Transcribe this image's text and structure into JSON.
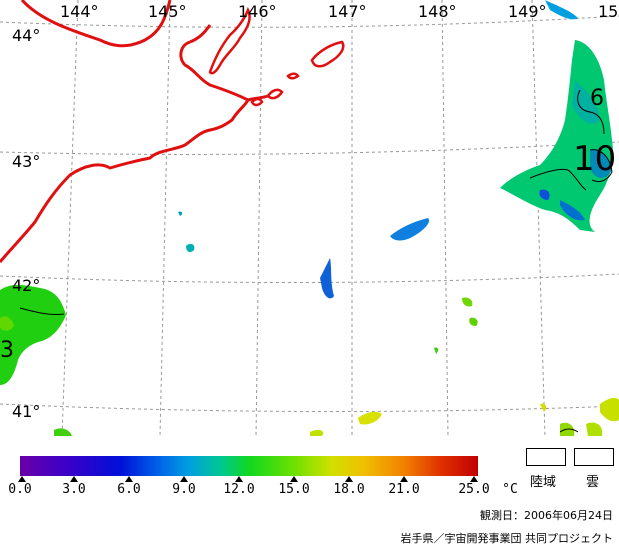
{
  "map": {
    "longitude_labels": [
      "144°",
      "145°",
      "146°",
      "147°",
      "148°",
      "149°",
      "15"
    ],
    "latitude_labels": [
      "44°",
      "43°",
      "42°",
      "41°"
    ],
    "contour_labels": [
      "10",
      "6",
      "3"
    ]
  },
  "colorbar": {
    "ticks": [
      "0.0",
      "3.0",
      "6.0",
      "9.0",
      "12.0",
      "15.0",
      "18.0",
      "21.0",
      "25.0"
    ],
    "unit": "°C",
    "gradient_colors": [
      "#6a00a8",
      "#3c00c8",
      "#0010d8",
      "#0060e8",
      "#00a0e0",
      "#00c890",
      "#10d820",
      "#70e000",
      "#d0e000",
      "#f0c000",
      "#f08000",
      "#e03000",
      "#c00000"
    ]
  },
  "legend": {
    "land_label": "陸域",
    "cloud_label": "雲"
  },
  "observation_date": "観測日：2006年06月24日",
  "credit": "岩手県／宇宙開発事業団 共同プロジェクト",
  "colors": {
    "coastline": "#e01010",
    "grid": "#999999"
  }
}
